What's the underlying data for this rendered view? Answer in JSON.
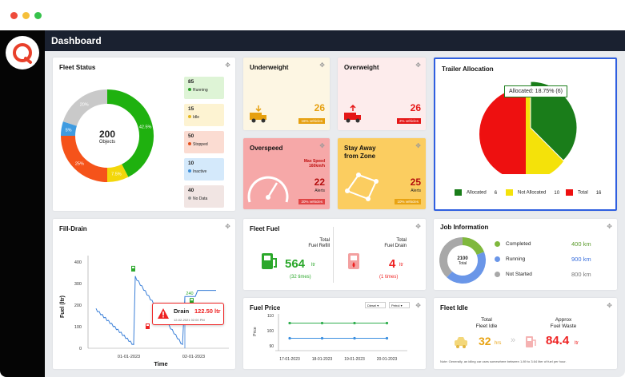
{
  "window": {
    "dots": [
      "#ee4b3b",
      "#f5bf3a",
      "#36c24b"
    ]
  },
  "header": {
    "title": "Dashboard"
  },
  "fleet_status": {
    "title": "Fleet Status",
    "total": "200",
    "total_label": "Objects",
    "segments": [
      {
        "label": "42.5%",
        "value": 42.5,
        "color": "#1fb10f"
      },
      {
        "label": "7.5%",
        "value": 7.5,
        "color": "#f3d70a"
      },
      {
        "label": "25%",
        "value": 25,
        "color": "#f5531a"
      },
      {
        "label": "5%",
        "value": 5,
        "color": "#3f9be0"
      },
      {
        "label": "20%",
        "value": 20,
        "color": "#c9c9c9"
      }
    ],
    "items": [
      {
        "count": "85",
        "label": "Running",
        "bg": "#def4d6",
        "dot": "#2ea12e"
      },
      {
        "count": "15",
        "label": "Idle",
        "bg": "#fdf3d2",
        "dot": "#e6b820"
      },
      {
        "count": "50",
        "label": "Stopped",
        "bg": "#fbdcd2",
        "dot": "#e2501d"
      },
      {
        "count": "10",
        "label": "Inactive",
        "bg": "#d4e9fb",
        "dot": "#3f8fd8"
      },
      {
        "count": "40",
        "label": "No Data",
        "bg": "#f1e5e3",
        "dot": "#9a9a9a"
      }
    ]
  },
  "underweight": {
    "title": "Underweight",
    "value": "26",
    "badge": "16% vehicles"
  },
  "overweight": {
    "title": "Overweight",
    "value": "26",
    "badge": "2% vehicles"
  },
  "overspeed": {
    "title": "Overspeed",
    "max_speed": "Max Speed\n160km/h",
    "value": "22",
    "alerts": "Alerts",
    "badge": "20% vehicles"
  },
  "stay_away": {
    "title": "Stay Away\nfrom Zone",
    "value": "25",
    "alerts": "Alerts",
    "badge": "10% vehicles"
  },
  "trailer": {
    "title": "Trailer Allocation",
    "tooltip": "Allocated: 18.75% (6)",
    "legend": [
      {
        "label": "Allocated",
        "count": "6",
        "color": "#1a7d1a"
      },
      {
        "label": "Not Allocated",
        "count": "10",
        "color": "#f4e20a"
      },
      {
        "label": "Total",
        "count": "16",
        "color": "#ee1010"
      }
    ]
  },
  "fill_drain": {
    "title": "Fill-Drain",
    "ylabel": "Fuel (ltr)",
    "xlabel": "Time",
    "yticks": [
      "400",
      "300",
      "200",
      "100",
      "0"
    ],
    "xticks": [
      "01-01-2023",
      "02-01-2023"
    ],
    "peak_label": "240",
    "popup": {
      "title": "Drain",
      "value": "122.50 ltr",
      "date": "12-02-2021 02:00 PM"
    }
  },
  "fleet_fuel": {
    "title": "Fleet Fuel",
    "refill_label": "Total\nFuel Refill",
    "refill_value": "564",
    "refill_unit": "ltr",
    "refill_times": "(32 times)",
    "drain_label": "Total\nFuel Drain",
    "drain_value": "4",
    "drain_unit": "ltr",
    "drain_times": "(1 times)"
  },
  "fuel_price": {
    "title": "Fuel Price",
    "select1": "Diesel",
    "select2": "Petrol",
    "ylabel": "Price",
    "yticks": [
      "110",
      "100",
      "90"
    ],
    "xticks": [
      "17-01-2023",
      "18-01-2023",
      "19-01-2023",
      "20-01-2023"
    ]
  },
  "job": {
    "title": "Job Information",
    "center": "2100",
    "center_label": "Total",
    "items": [
      {
        "label": "Completed",
        "value": "400",
        "unit": "km",
        "color": "#7fb83d"
      },
      {
        "label": "Running",
        "value": "900",
        "unit": "km",
        "color": "#6a96e8"
      },
      {
        "label": "Not Started",
        "value": "800",
        "unit": "km",
        "color": "#a8a8a8"
      }
    ]
  },
  "fleet_idle": {
    "title": "Fleet Idle",
    "idle_label": "Total\nFleet Idle",
    "idle_value": "32",
    "idle_unit": "hrs",
    "waste_label": "Approx\nFuel Waste",
    "waste_value": "84.4",
    "waste_unit": "ltr",
    "note": "Note: Generally, an idling car uses somewhere between 1.89 to 3.64 liter of fuel per hour."
  },
  "chart_data": [
    {
      "type": "pie",
      "title": "Fleet Status",
      "categories": [
        "Running",
        "Idle",
        "Stopped",
        "Inactive",
        "No Data"
      ],
      "values": [
        85,
        15,
        50,
        10,
        40
      ]
    },
    {
      "type": "pie",
      "title": "Trailer Allocation",
      "categories": [
        "Allocated",
        "Not Allocated"
      ],
      "values": [
        6,
        10
      ]
    },
    {
      "type": "line",
      "title": "Fill-Drain",
      "xlabel": "Time",
      "ylabel": "Fuel (ltr)",
      "ylim": [
        0,
        400
      ],
      "x": [
        "01-01-2023",
        "02-01-2023"
      ]
    },
    {
      "type": "line",
      "title": "Fuel Price",
      "ylabel": "Price",
      "ylim": [
        90,
        110
      ],
      "categories": [
        "17-01-2023",
        "18-01-2023",
        "19-01-2023",
        "20-01-2023"
      ],
      "series": [
        {
          "values": [
            105,
            105,
            105,
            105
          ],
          "color": "#2fae4e"
        },
        {
          "values": [
            95,
            95,
            95,
            95
          ],
          "color": "#3a8fe0"
        }
      ]
    }
  ]
}
